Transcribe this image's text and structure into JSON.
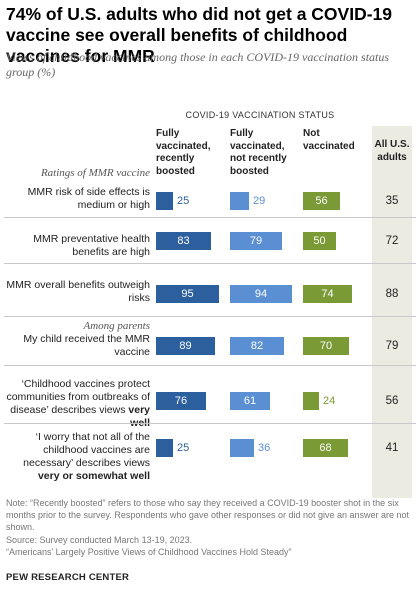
{
  "title": "74% of U.S. adults who did not get a COVID-19 vaccine see overall benefits of childhood vaccines for MMR",
  "subtitle": "Views of childhood vaccines among those in each COVID-19 vaccination status group (%)",
  "colors": {
    "fully_recent": "#2c5f9e",
    "fully_not_recent": "#5b8fd4",
    "not_vaccinated": "#7a9a36",
    "all_bg": "#ecebe2"
  },
  "chart_data": {
    "type": "bar",
    "group_heading": "COVID-19 VACCINATION STATUS",
    "ratings_label": "Ratings of MMR vaccine",
    "series": [
      {
        "name": "Fully vaccinated, recently boosted",
        "values": [
          25,
          83,
          95,
          89,
          76,
          25
        ]
      },
      {
        "name": "Fully vaccinated, not recently boosted",
        "values": [
          29,
          79,
          94,
          82,
          61,
          36
        ]
      },
      {
        "name": "Not vaccinated",
        "values": [
          56,
          50,
          74,
          70,
          24,
          68
        ]
      }
    ],
    "all_us_adults": {
      "name": "All U.S. adults",
      "values": [
        35,
        72,
        88,
        79,
        56,
        41
      ]
    },
    "categories": [
      {
        "pre": "",
        "label": "MMR risk of side effects is medium or high",
        "bold": ""
      },
      {
        "pre": "",
        "label": "MMR preventative health benefits are high",
        "bold": ""
      },
      {
        "pre": "",
        "label": "MMR overall benefits outweigh risks",
        "bold": ""
      },
      {
        "pre": "Among parents",
        "label": "My child received the MMR vaccine",
        "bold": ""
      },
      {
        "pre": "",
        "label": "‘Childhood vaccines protect communities from outbreaks of disease’ describes views",
        "bold": "very well"
      },
      {
        "pre": "",
        "label": "‘I worry that not all of the childhood vaccines are necessary’ describes views",
        "bold": "very or somewhat well"
      }
    ]
  },
  "footer": {
    "note": "Note: “Recently boosted” refers to those who say they received a COVID-19 booster shot in the six months prior to the survey. Respondents who gave other responses or did not give an answer are not shown.",
    "source": "Source: Survey conducted March 13-19, 2023.",
    "report": "“Americans’ Largely Positive Views of Childhood Vaccines Hold Steady”",
    "brand": "PEW RESEARCH CENTER"
  }
}
